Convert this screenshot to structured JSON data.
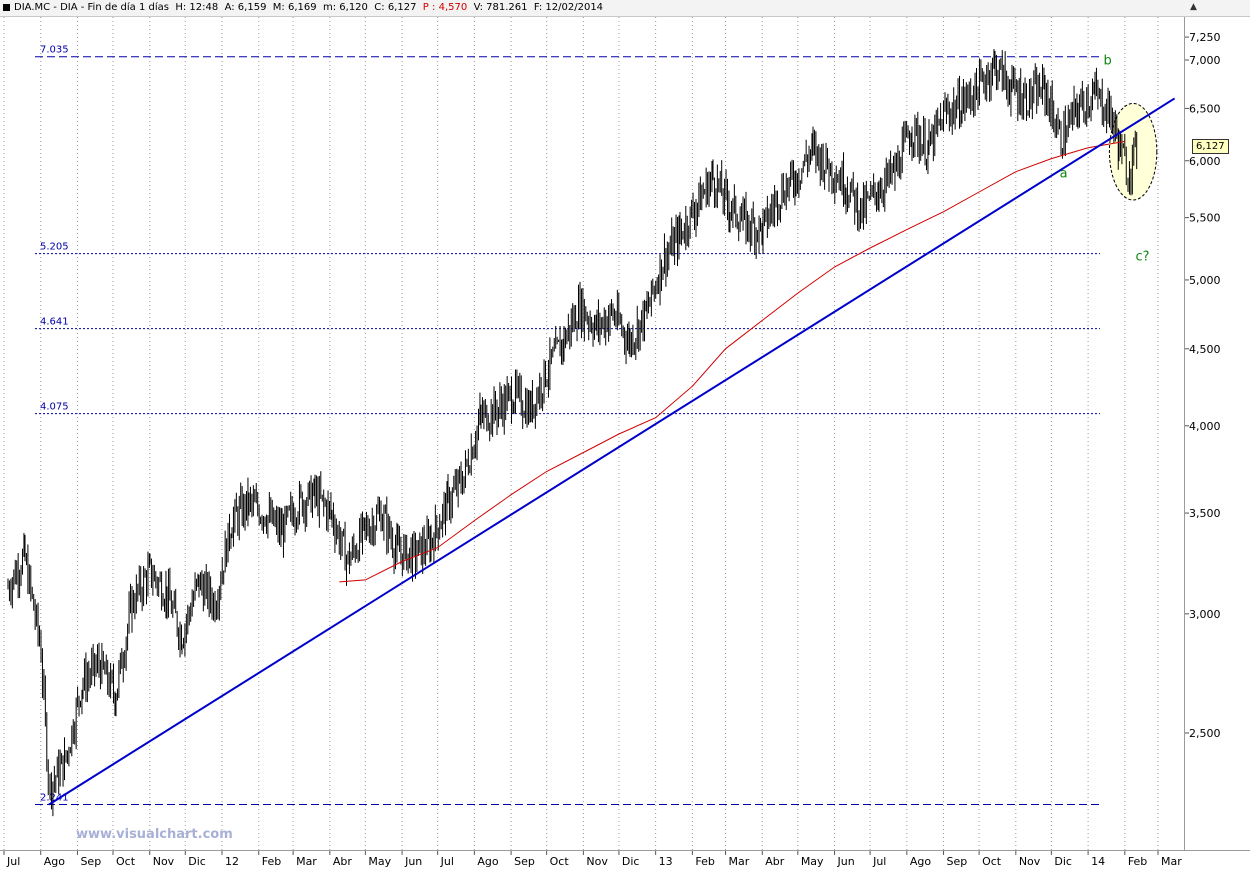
{
  "header": {
    "segments": [
      {
        "text": "DIA.MC - DIA - Fin de día 1 días  H: ",
        "color": "black"
      },
      {
        "text": "12:48",
        "color": "black"
      },
      {
        "text": "  A: ",
        "color": "black"
      },
      {
        "text": "6,159",
        "color": "black"
      },
      {
        "text": "  M: ",
        "color": "black"
      },
      {
        "text": "6,169",
        "color": "black"
      },
      {
        "text": "  m: ",
        "color": "black"
      },
      {
        "text": "6,120",
        "color": "black"
      },
      {
        "text": "  C: ",
        "color": "black"
      },
      {
        "text": "6,127",
        "color": "black"
      },
      {
        "text": "  P : ",
        "color": "red"
      },
      {
        "text": "4,570",
        "color": "red"
      },
      {
        "text": "  V: ",
        "color": "black"
      },
      {
        "text": "781.261",
        "color": "black"
      },
      {
        "text": "  F: ",
        "color": "black"
      },
      {
        "text": "12/02/2014",
        "color": "black"
      }
    ]
  },
  "watermark": "www.visualchart.com",
  "current_price_label": "6,127",
  "colors": {
    "candles": "#000000",
    "moving_average": "#d00000",
    "trendline": "#0000cc",
    "levels": "#0000aa",
    "wave_labels": "#118811",
    "highlight_fill": "#ffffd8"
  },
  "chart_data": {
    "type": "line",
    "scale": "log",
    "y_range": [
      2100,
      7250
    ],
    "x_axis_labels": [
      {
        "label": "Jul",
        "date": "2011-07"
      },
      {
        "label": "Ago",
        "date": "2011-08"
      },
      {
        "label": "Sep",
        "date": "2011-09"
      },
      {
        "label": "Oct",
        "date": "2011-10"
      },
      {
        "label": "Nov",
        "date": "2011-11"
      },
      {
        "label": "Dic",
        "date": "2011-12"
      },
      {
        "label": "12",
        "date": "2012-01"
      },
      {
        "label": "Feb",
        "date": "2012-02"
      },
      {
        "label": "Mar",
        "date": "2012-03"
      },
      {
        "label": "Abr",
        "date": "2012-04"
      },
      {
        "label": "May",
        "date": "2012-05"
      },
      {
        "label": "Jun",
        "date": "2012-06"
      },
      {
        "label": "Jul",
        "date": "2012-07"
      },
      {
        "label": "Ago",
        "date": "2012-08"
      },
      {
        "label": "Sep",
        "date": "2012-09"
      },
      {
        "label": "Oct",
        "date": "2012-10"
      },
      {
        "label": "Nov",
        "date": "2012-11"
      },
      {
        "label": "Dic",
        "date": "2012-12"
      },
      {
        "label": "13",
        "date": "2013-01"
      },
      {
        "label": "Feb",
        "date": "2013-02"
      },
      {
        "label": "Mar",
        "date": "2013-03"
      },
      {
        "label": "Abr",
        "date": "2013-04"
      },
      {
        "label": "May",
        "date": "2013-05"
      },
      {
        "label": "Jun",
        "date": "2013-06"
      },
      {
        "label": "Jul",
        "date": "2013-07"
      },
      {
        "label": "Ago",
        "date": "2013-08"
      },
      {
        "label": "Sep",
        "date": "2013-09"
      },
      {
        "label": "Oct",
        "date": "2013-10"
      },
      {
        "label": "Nov",
        "date": "2013-11"
      },
      {
        "label": "Dic",
        "date": "2013-12"
      },
      {
        "label": "14",
        "date": "2014-01"
      },
      {
        "label": "Feb",
        "date": "2014-02"
      },
      {
        "label": "Mar",
        "date": "2014-03"
      }
    ],
    "y_ticks": [
      {
        "value": 7250,
        "label": "7,250"
      },
      {
        "value": 7000,
        "label": "7,000"
      },
      {
        "value": 6500,
        "label": "6,500"
      },
      {
        "value": 6000,
        "label": "6,000"
      },
      {
        "value": 5500,
        "label": "5,500"
      },
      {
        "value": 5000,
        "label": "5,000"
      },
      {
        "value": 4500,
        "label": "4,500"
      },
      {
        "value": 4000,
        "label": "4,000"
      },
      {
        "value": 3500,
        "label": "3,500"
      },
      {
        "value": 3000,
        "label": "3,000"
      },
      {
        "value": 2500,
        "label": "2,500"
      }
    ],
    "levels": [
      {
        "value": 7035,
        "label": "7.035",
        "style": "dashed"
      },
      {
        "value": 5205,
        "label": "5.205",
        "style": "dotted"
      },
      {
        "value": 4641,
        "label": "4.641",
        "style": "dotted"
      },
      {
        "value": 4075,
        "label": "4.075",
        "style": "dotted"
      },
      {
        "value": 2241,
        "label": "2.241",
        "style": "dashed"
      }
    ],
    "series": [
      {
        "name": "",
        "kind": "ohlc_bars",
        "points": [
          {
            "date": "2011-07-04",
            "value": 3120
          },
          {
            "date": "2011-07-18",
            "value": 3280
          },
          {
            "date": "2011-08-01",
            "value": 2850
          },
          {
            "date": "2011-08-08",
            "value": 2300
          },
          {
            "date": "2011-08-22",
            "value": 2400
          },
          {
            "date": "2011-09-05",
            "value": 2700
          },
          {
            "date": "2011-09-19",
            "value": 2780
          },
          {
            "date": "2011-10-03",
            "value": 2650
          },
          {
            "date": "2011-10-17",
            "value": 3050
          },
          {
            "date": "2011-11-01",
            "value": 3200
          },
          {
            "date": "2011-11-15",
            "value": 3100
          },
          {
            "date": "2011-11-28",
            "value": 2900
          },
          {
            "date": "2011-12-12",
            "value": 3150
          },
          {
            "date": "2011-12-26",
            "value": 3050
          },
          {
            "date": "2012-01-09",
            "value": 3450
          },
          {
            "date": "2012-01-23",
            "value": 3550
          },
          {
            "date": "2012-02-06",
            "value": 3500
          },
          {
            "date": "2012-02-20",
            "value": 3400
          },
          {
            "date": "2012-03-05",
            "value": 3550
          },
          {
            "date": "2012-03-19",
            "value": 3600
          },
          {
            "date": "2012-04-02",
            "value": 3500
          },
          {
            "date": "2012-04-16",
            "value": 3250
          },
          {
            "date": "2012-04-30",
            "value": 3400
          },
          {
            "date": "2012-05-14",
            "value": 3500
          },
          {
            "date": "2012-05-28",
            "value": 3300
          },
          {
            "date": "2012-06-11",
            "value": 3280
          },
          {
            "date": "2012-06-25",
            "value": 3350
          },
          {
            "date": "2012-07-09",
            "value": 3550
          },
          {
            "date": "2012-07-23",
            "value": 3700
          },
          {
            "date": "2012-08-06",
            "value": 4050
          },
          {
            "date": "2012-08-20",
            "value": 4100
          },
          {
            "date": "2012-09-03",
            "value": 4200
          },
          {
            "date": "2012-09-17",
            "value": 4100
          },
          {
            "date": "2012-10-01",
            "value": 4350
          },
          {
            "date": "2012-10-15",
            "value": 4550
          },
          {
            "date": "2012-10-29",
            "value": 4800
          },
          {
            "date": "2012-11-12",
            "value": 4650
          },
          {
            "date": "2012-11-26",
            "value": 4750
          },
          {
            "date": "2012-12-10",
            "value": 4550
          },
          {
            "date": "2012-12-24",
            "value": 4750
          },
          {
            "date": "2013-01-07",
            "value": 5150
          },
          {
            "date": "2013-01-21",
            "value": 5350
          },
          {
            "date": "2013-02-04",
            "value": 5600
          },
          {
            "date": "2013-02-18",
            "value": 5850
          },
          {
            "date": "2013-03-04",
            "value": 5600
          },
          {
            "date": "2013-03-18",
            "value": 5450
          },
          {
            "date": "2013-04-01",
            "value": 5400
          },
          {
            "date": "2013-04-15",
            "value": 5700
          },
          {
            "date": "2013-04-29",
            "value": 5850
          },
          {
            "date": "2013-05-13",
            "value": 6100
          },
          {
            "date": "2013-05-27",
            "value": 5950
          },
          {
            "date": "2013-06-10",
            "value": 5800
          },
          {
            "date": "2013-06-24",
            "value": 5550
          },
          {
            "date": "2013-07-08",
            "value": 5750
          },
          {
            "date": "2013-07-22",
            "value": 5900
          },
          {
            "date": "2013-08-05",
            "value": 6300
          },
          {
            "date": "2013-08-19",
            "value": 6100
          },
          {
            "date": "2013-09-02",
            "value": 6450
          },
          {
            "date": "2013-09-16",
            "value": 6550
          },
          {
            "date": "2013-09-30",
            "value": 6700
          },
          {
            "date": "2013-10-14",
            "value": 6950
          },
          {
            "date": "2013-10-28",
            "value": 6700
          },
          {
            "date": "2013-11-11",
            "value": 6600
          },
          {
            "date": "2013-11-25",
            "value": 6700
          },
          {
            "date": "2013-12-09",
            "value": 6200
          },
          {
            "date": "2013-12-23",
            "value": 6500
          },
          {
            "date": "2014-01-06",
            "value": 6650
          },
          {
            "date": "2014-01-20",
            "value": 6450
          },
          {
            "date": "2014-01-27",
            "value": 6150
          },
          {
            "date": "2014-02-03",
            "value": 5900
          },
          {
            "date": "2014-02-12",
            "value": 6127
          }
        ]
      },
      {
        "name": "",
        "kind": "moving_average",
        "points": [
          {
            "date": "2012-04-09",
            "value": 3150
          },
          {
            "date": "2012-05-01",
            "value": 3160
          },
          {
            "date": "2012-06-01",
            "value": 3250
          },
          {
            "date": "2012-07-01",
            "value": 3320
          },
          {
            "date": "2012-08-01",
            "value": 3460
          },
          {
            "date": "2012-09-01",
            "value": 3600
          },
          {
            "date": "2012-10-01",
            "value": 3730
          },
          {
            "date": "2012-11-01",
            "value": 3840
          },
          {
            "date": "2012-12-01",
            "value": 3950
          },
          {
            "date": "2013-01-01",
            "value": 4050
          },
          {
            "date": "2013-02-01",
            "value": 4250
          },
          {
            "date": "2013-03-01",
            "value": 4500
          },
          {
            "date": "2013-04-01",
            "value": 4700
          },
          {
            "date": "2013-05-01",
            "value": 4900
          },
          {
            "date": "2013-06-01",
            "value": 5100
          },
          {
            "date": "2013-07-01",
            "value": 5250
          },
          {
            "date": "2013-08-01",
            "value": 5400
          },
          {
            "date": "2013-09-01",
            "value": 5550
          },
          {
            "date": "2013-10-01",
            "value": 5720
          },
          {
            "date": "2013-11-01",
            "value": 5900
          },
          {
            "date": "2013-12-01",
            "value": 6020
          },
          {
            "date": "2014-01-01",
            "value": 6120
          },
          {
            "date": "2014-02-01",
            "value": 6180
          }
        ]
      },
      {
        "name": "",
        "kind": "trendline",
        "points": [
          {
            "date": "2011-08-08",
            "value": 2241
          },
          {
            "date": "2014-03-15",
            "value": 6600
          }
        ]
      }
    ],
    "annotations": [
      {
        "text": "b",
        "date": "2014-01-14",
        "value": 6950
      },
      {
        "text": "a",
        "date": "2013-12-08",
        "value": 5850
      },
      {
        "text": "c?",
        "date": "2014-02-10",
        "value": 5150
      }
    ],
    "highlight_ellipse": {
      "center_date": "2014-02-08",
      "center_value": 6050,
      "date_radius_days": 20,
      "value_high": 6550,
      "value_low": 5650
    },
    "grid": "vertical dotted at month boundaries"
  }
}
